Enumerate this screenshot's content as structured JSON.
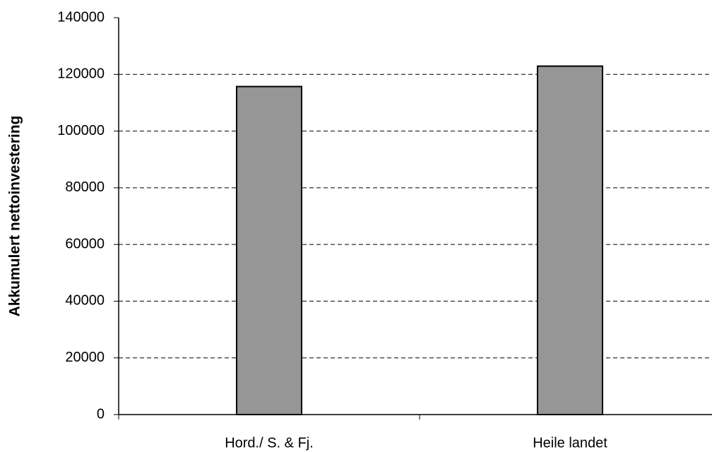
{
  "chart_data": {
    "type": "bar",
    "y_label": "Akkumulert nettoinvestering",
    "categories": [
      "Hord./ S. & Fj.",
      "Heile landet"
    ],
    "values": [
      115700,
      122900
    ],
    "color": "#969696",
    "ylim": [
      0,
      140000
    ],
    "yticks": [
      0,
      20000,
      40000,
      60000,
      80000,
      100000,
      120000,
      140000
    ],
    "grid": true
  }
}
